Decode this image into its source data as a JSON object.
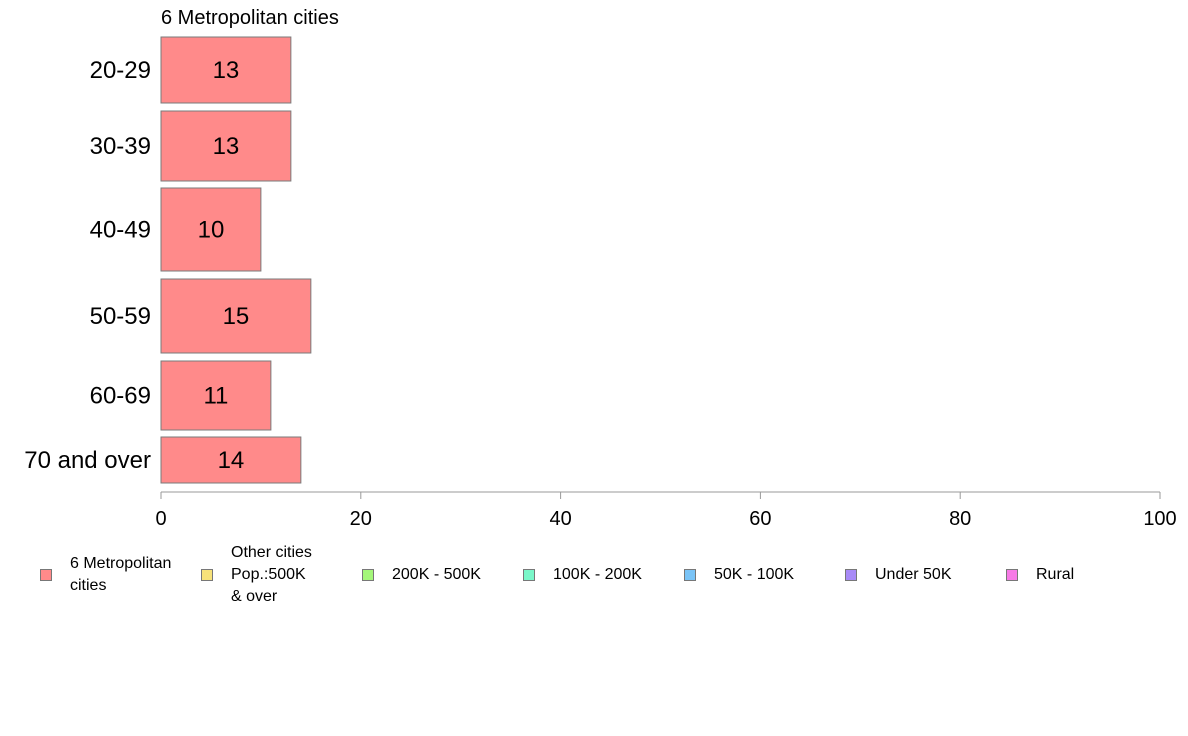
{
  "chart_data": {
    "type": "bar",
    "orientation": "horizontal",
    "title": "6 Metropolitan cities",
    "categories": [
      "20-29",
      "30-39",
      "40-49",
      "50-59",
      "60-69",
      "70 and over"
    ],
    "values": [
      13,
      13,
      10,
      15,
      11,
      14
    ],
    "value_labels": [
      "13",
      "13",
      "10",
      "15",
      "11",
      "14"
    ],
    "xlim": [
      0,
      100
    ],
    "xticks": [
      "0",
      "20",
      "40",
      "60",
      "80",
      "100"
    ],
    "xtick_values": [
      0,
      20,
      40,
      60,
      80,
      100
    ],
    "bar_color": "#ff8a8a",
    "grid": false,
    "legend_position": "bottom",
    "legend": [
      {
        "label": "6 Metropolitan\n cities",
        "color": "#ff8a8a"
      },
      {
        "label": "Other cities\nPop.:500K\n & over",
        "color": "#f7e27a"
      },
      {
        "label": "200K - 500K",
        "color": "#a4f77a"
      },
      {
        "label": "100K - 200K",
        "color": "#7af7c9"
      },
      {
        "label": "50K - 100K",
        "color": "#7ac4f7"
      },
      {
        "label": "Under 50K",
        "color": "#a88af7"
      },
      {
        "label": "Rural",
        "color": "#f77ae6"
      }
    ]
  }
}
